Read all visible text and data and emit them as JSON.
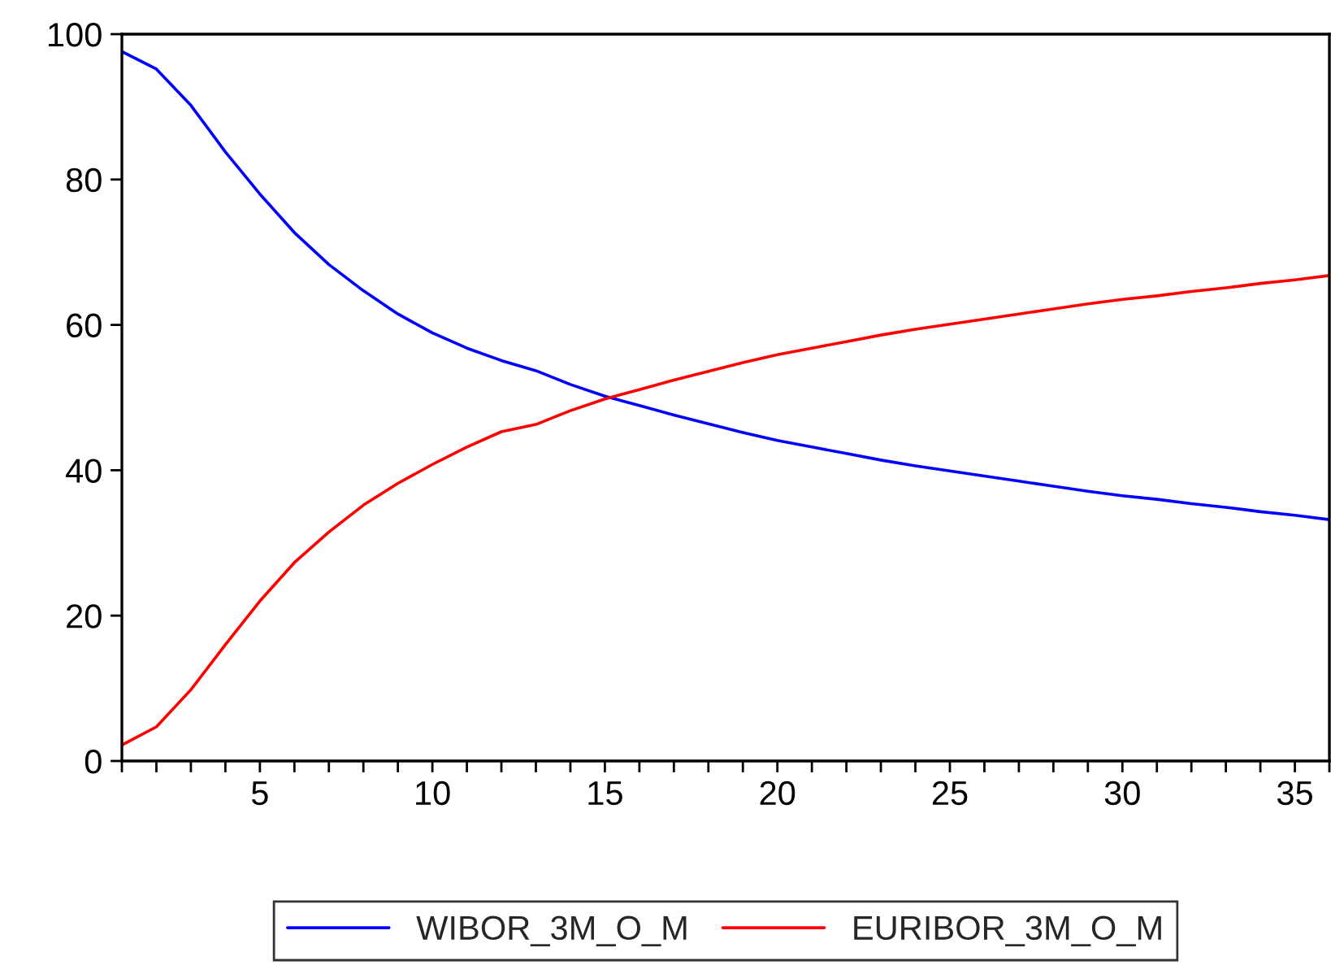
{
  "chart_data": {
    "type": "line",
    "x": [
      1,
      2,
      3,
      4,
      5,
      6,
      7,
      8,
      9,
      10,
      11,
      12,
      13,
      14,
      15,
      16,
      17,
      18,
      19,
      20,
      21,
      22,
      23,
      24,
      25,
      26,
      27,
      28,
      29,
      30,
      31,
      32,
      33,
      34,
      35,
      36
    ],
    "series": [
      {
        "name": "WIBOR_3M_O_M",
        "color": "#0000ff",
        "values": [
          97.6,
          95.2,
          90.2,
          83.8,
          78.0,
          72.7,
          68.3,
          64.7,
          61.5,
          58.9,
          56.8,
          55.1,
          53.7,
          51.8,
          50.2,
          48.9,
          47.6,
          46.4,
          45.2,
          44.1,
          43.2,
          42.3,
          41.4,
          40.6,
          39.9,
          39.2,
          38.5,
          37.8,
          37.1,
          36.5,
          36.0,
          35.4,
          34.9,
          34.3,
          33.8,
          33.2
        ]
      },
      {
        "name": "EURIBOR_3M_O_M",
        "color": "#ff0000",
        "values": [
          2.2,
          4.7,
          9.8,
          16.0,
          22.0,
          27.3,
          31.5,
          35.2,
          38.2,
          40.8,
          43.2,
          45.3,
          46.3,
          48.2,
          49.8,
          51.1,
          52.4,
          53.6,
          54.8,
          55.9,
          56.8,
          57.7,
          58.6,
          59.4,
          60.1,
          60.8,
          61.5,
          62.2,
          62.9,
          63.5,
          64.0,
          64.6,
          65.1,
          65.7,
          66.2,
          66.8
        ]
      }
    ],
    "xlim": [
      1,
      36
    ],
    "xticks": [
      {
        "value": 1,
        "label": null
      },
      {
        "value": 2,
        "label": null
      },
      {
        "value": 3,
        "label": null
      },
      {
        "value": 4,
        "label": null
      },
      5,
      {
        "value": 6,
        "label": null
      },
      {
        "value": 7,
        "label": null
      },
      {
        "value": 8,
        "label": null
      },
      {
        "value": 9,
        "label": null
      },
      10,
      {
        "value": 11,
        "label": null
      },
      {
        "value": 12,
        "label": null
      },
      {
        "value": 13,
        "label": null
      },
      {
        "value": 14,
        "label": null
      },
      15,
      {
        "value": 16,
        "label": null
      },
      {
        "value": 17,
        "label": null
      },
      {
        "value": 18,
        "label": null
      },
      {
        "value": 19,
        "label": null
      },
      20,
      {
        "value": 21,
        "label": null
      },
      {
        "value": 22,
        "label": null
      },
      {
        "value": 23,
        "label": null
      },
      {
        "value": 24,
        "label": null
      },
      25,
      {
        "value": 26,
        "label": null
      },
      {
        "value": 27,
        "label": null
      },
      {
        "value": 28,
        "label": null
      },
      {
        "value": 29,
        "label": null
      },
      30,
      {
        "value": 31,
        "label": null
      },
      {
        "value": 32,
        "label": null
      },
      {
        "value": 33,
        "label": null
      },
      {
        "value": 34,
        "label": null
      },
      35,
      {
        "value": 36,
        "label": null
      }
    ],
    "ylim": [
      0,
      100
    ],
    "yticks": [
      0,
      20,
      40,
      60,
      80,
      100
    ],
    "grid": false,
    "legend": "bottom",
    "line_style": "solid",
    "marker": "none"
  }
}
